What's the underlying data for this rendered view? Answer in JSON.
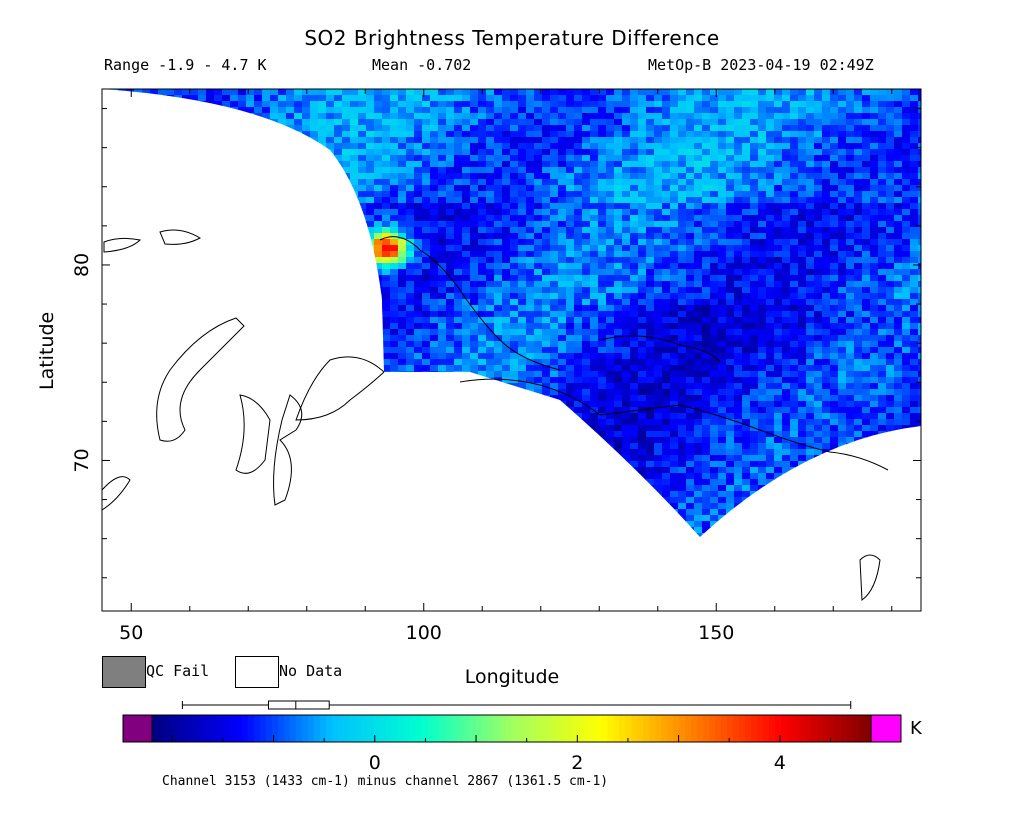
{
  "header": {
    "title": "SO2 Brightness Temperature Difference",
    "range": "Range -1.9 - 4.7 K",
    "mean": "Mean -0.702",
    "satellite_time": "MetOp-B 2023-04-19 02:49Z"
  },
  "legend": {
    "qc_fail_label": "QC Fail",
    "no_data_label": "No Data",
    "qc_fail_color": "#7f7f7f",
    "no_data_color": "#ffffff"
  },
  "colorbar": {
    "unit": "K",
    "min": -2.2,
    "max": 4.9,
    "ticks": [
      {
        "value": 0,
        "label": "0"
      },
      {
        "value": 2,
        "label": "2"
      },
      {
        "value": 4,
        "label": "4"
      }
    ],
    "under_color": "#800080",
    "over_color": "#ff00ff",
    "stops": [
      "#000080",
      "#0000ff",
      "#00c0ff",
      "#00ffd0",
      "#a0ff60",
      "#ffff00",
      "#ff8000",
      "#ff0000",
      "#800000"
    ],
    "boxplot": {
      "whisker_low": -1.9,
      "q1": -1.05,
      "median": -0.78,
      "q3": -0.45,
      "whisker_high": 4.7
    }
  },
  "footnote": "Channel 3153 (1433 cm-1) minus channel 2867 (1361.5 cm-1)",
  "chart_data": {
    "type": "heatmap",
    "title": "SO2 Brightness Temperature Difference",
    "xlabel": "Longitude",
    "ylabel": "Latitude",
    "xlim": [
      45,
      185
    ],
    "ylim": [
      62.3,
      89
    ],
    "x_ticks": [
      {
        "value": 50,
        "label": "50"
      },
      {
        "value": 100,
        "label": "100"
      },
      {
        "value": 150,
        "label": "150"
      }
    ],
    "y_ticks": [
      {
        "value": 70,
        "label": "70"
      },
      {
        "value": 80,
        "label": "80"
      }
    ],
    "projection": "longitude-latitude",
    "value_range": [
      -1.9,
      4.7
    ],
    "mean": -0.702,
    "hotspot": {
      "lon": 93,
      "lat": 81,
      "value": 4.7
    }
  }
}
